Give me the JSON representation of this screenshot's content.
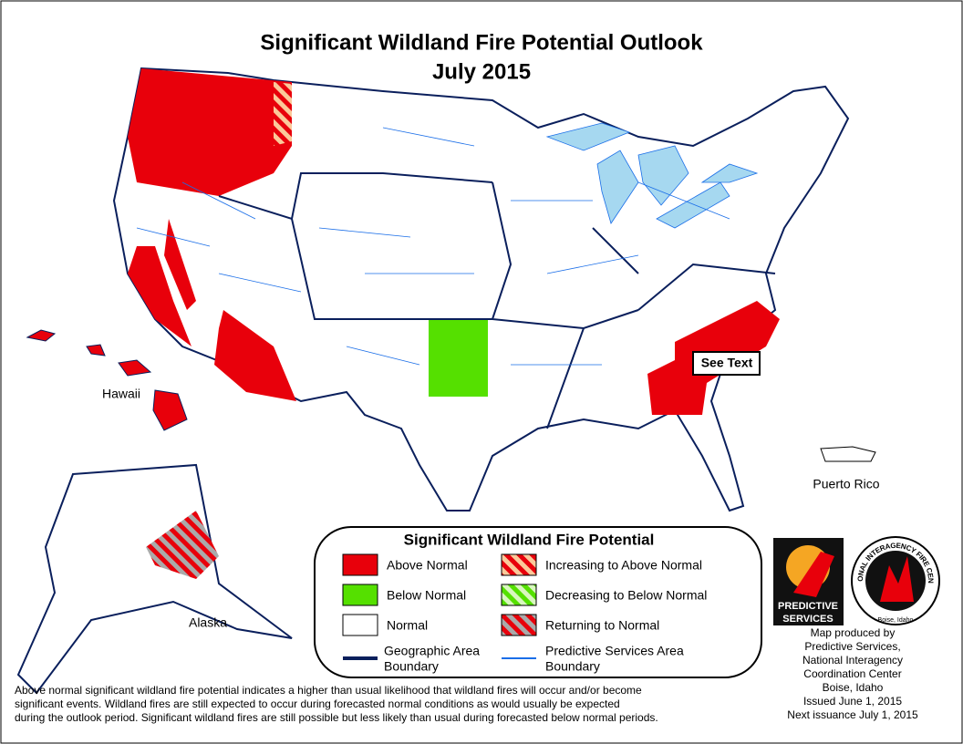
{
  "title": "Significant Wildland Fire Potential Outlook",
  "subtitle": "July 2015",
  "map_labels": {
    "hawaii": "Hawaii",
    "alaska": "Alaska",
    "puerto_rico": "Puerto Rico",
    "callout": "See Text"
  },
  "legend": {
    "title": "Significant Wildland Fire Potential",
    "items": [
      {
        "label": "Above Normal",
        "color": "#e8000b"
      },
      {
        "label": "Increasing to Above Normal",
        "color": "#e8000b"
      },
      {
        "label": "Below Normal",
        "color": "#55e000"
      },
      {
        "label": "Decreasing to Below Normal",
        "color": "#55e000"
      },
      {
        "label": "Normal",
        "color": "#ffffff"
      },
      {
        "label": "Returning to Normal",
        "color": "#e8000b"
      }
    ],
    "lines": [
      {
        "label": [
          "Geographic Area",
          "Boundary"
        ],
        "color": "#0a1f5c"
      },
      {
        "label": [
          "Predictive Services Area",
          "Boundary"
        ],
        "color": "#1a6ee8"
      }
    ]
  },
  "logos": {
    "predictive": [
      "PREDICTIVE",
      "SERVICES"
    ],
    "nifc": "NATIONAL INTERAGENCY FIRE CENTER",
    "nifc_place": "Boise, Idaho"
  },
  "credit": [
    "Map produced by",
    "Predictive Services,",
    "National Interagency",
    "Coordination Center",
    "Boise, Idaho",
    "Issued June 1, 2015",
    "Next issuance July 1, 2015"
  ],
  "footnote": [
    "Above normal significant wildland fire potential indicates a higher than usual likelihood that wildland fires will occur and/or become",
    "significant events.  Wildland fires are still expected to occur during forecasted normal conditions as would usually be expected",
    "during the outlook period.  Significant wildland fires are still possible but less likely than usual during forecasted below normal periods."
  ]
}
